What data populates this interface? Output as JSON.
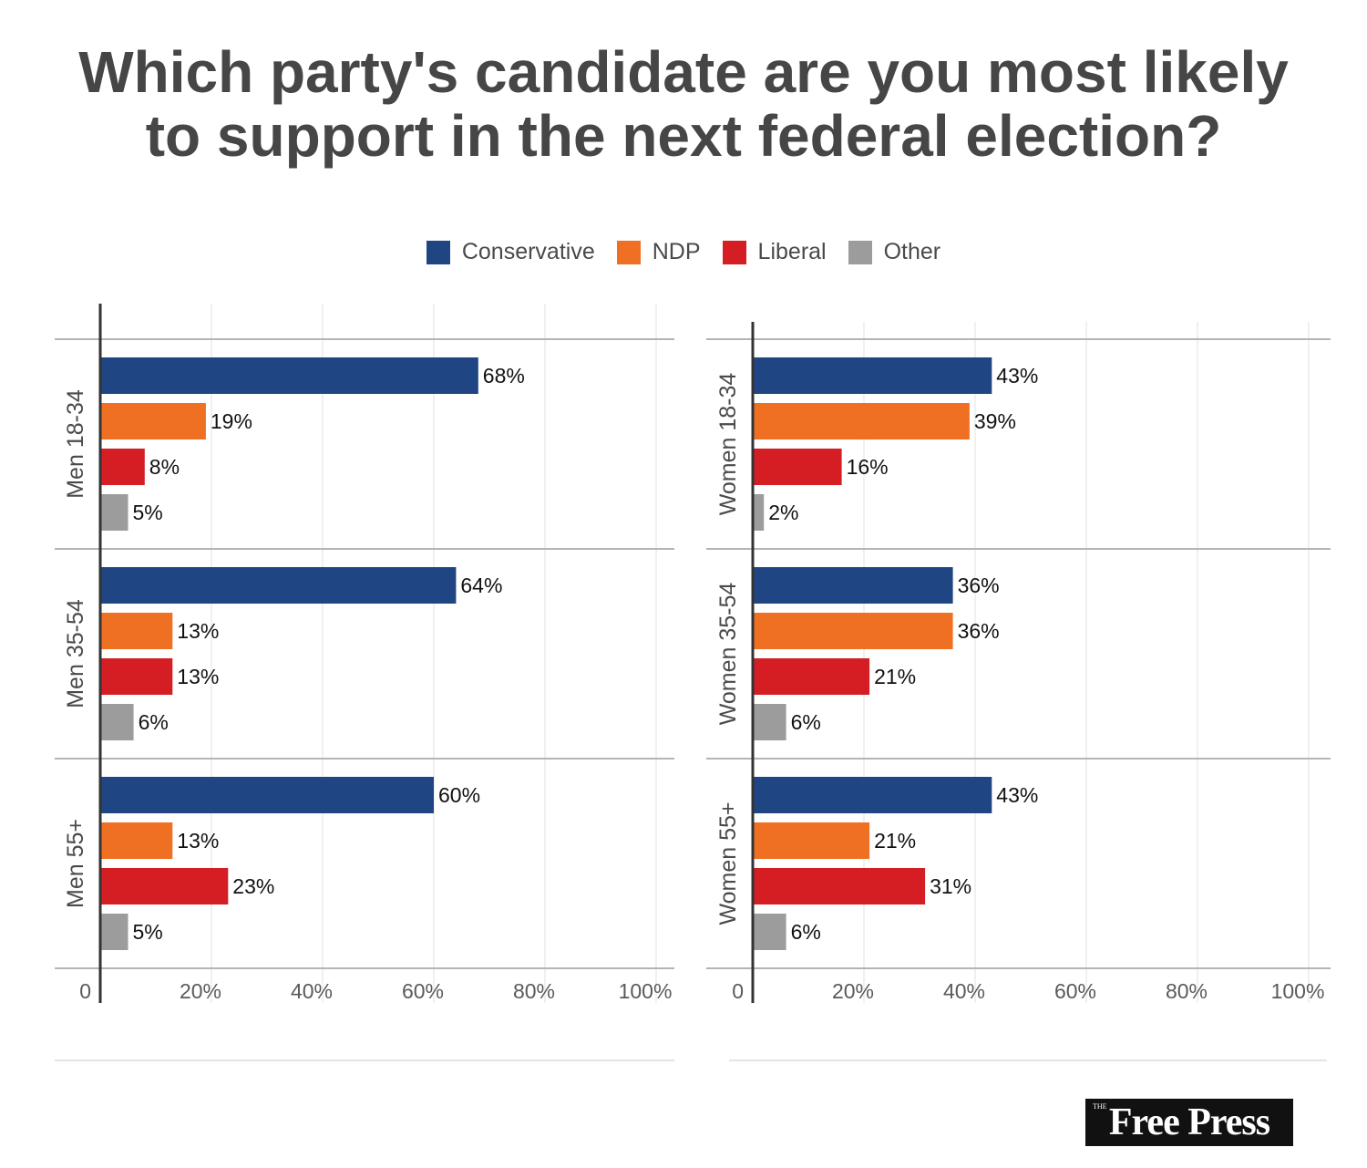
{
  "title_line1": "Which party's candidate are you most likely",
  "title_line2": "to support in the next federal election?",
  "legend": [
    {
      "label": "Conservative",
      "color": "#1f4582"
    },
    {
      "label": "NDP",
      "color": "#f07023"
    },
    {
      "label": "Liberal",
      "color": "#d41e24"
    },
    {
      "label": "Other",
      "color": "#9c9c9c"
    }
  ],
  "chart_data": [
    {
      "type": "bar",
      "orientation": "horizontal",
      "series_names": [
        "Conservative",
        "NDP",
        "Liberal",
        "Other"
      ],
      "groups": [
        {
          "label": "Men 18-34",
          "values": [
            68,
            19,
            8,
            5
          ],
          "labels": [
            "68%",
            "19%",
            "8%",
            "5%"
          ]
        },
        {
          "label": "Men 35-54",
          "values": [
            64,
            13,
            13,
            6
          ],
          "labels": [
            "64%",
            "13%",
            "13%",
            "6%"
          ]
        },
        {
          "label": "Men 55+",
          "values": [
            60,
            13,
            23,
            5
          ],
          "labels": [
            "60%",
            "13%",
            "23%",
            "5%"
          ]
        }
      ],
      "xlim": [
        0,
        100
      ],
      "x_ticks": [
        "0",
        "20%",
        "40%",
        "60%",
        "80%",
        "100%"
      ]
    },
    {
      "type": "bar",
      "orientation": "horizontal",
      "series_names": [
        "Conservative",
        "NDP",
        "Liberal",
        "Other"
      ],
      "groups": [
        {
          "label": "Women 18-34",
          "values": [
            43,
            39,
            16,
            2
          ],
          "labels": [
            "43%",
            "39%",
            "16%",
            "2%"
          ]
        },
        {
          "label": "Women 35-54",
          "values": [
            36,
            36,
            21,
            6
          ],
          "labels": [
            "36%",
            "36%",
            "21%",
            "6%"
          ]
        },
        {
          "label": "Women 55+",
          "values": [
            43,
            21,
            31,
            6
          ],
          "labels": [
            "43%",
            "21%",
            "31%",
            "6%"
          ]
        }
      ],
      "xlim": [
        0,
        100
      ],
      "x_ticks": [
        "0",
        "20%",
        "40%",
        "60%",
        "80%",
        "100%"
      ]
    }
  ],
  "logo": {
    "small": "THE",
    "text": "Free Press"
  }
}
